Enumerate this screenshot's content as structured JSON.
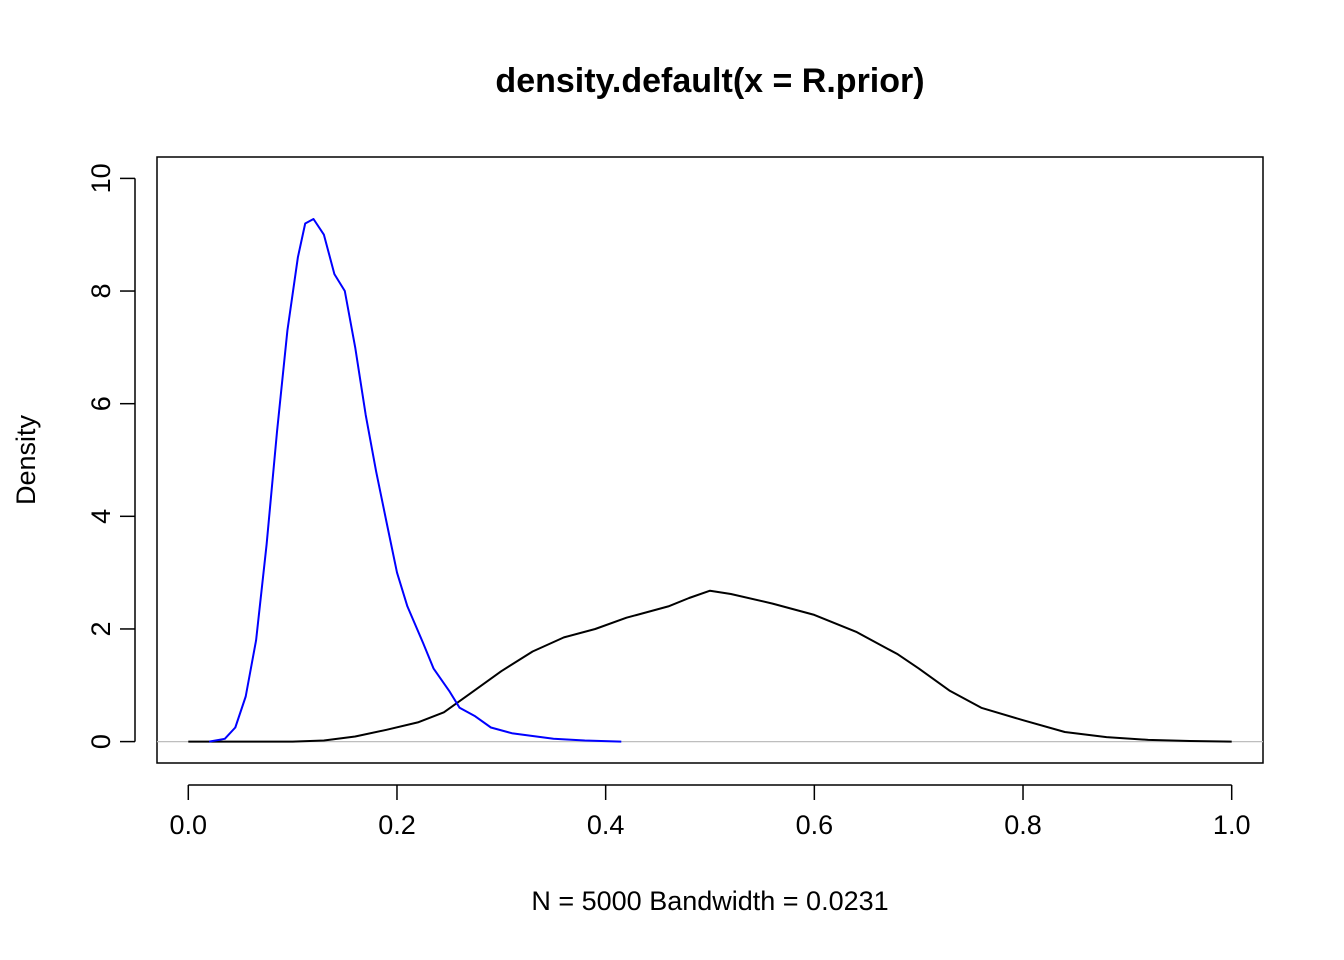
{
  "chart_data": {
    "type": "line",
    "title": "density.default(x = R.prior)",
    "xlabel": "N = 5000   Bandwidth = 0.0231",
    "ylabel": "Density",
    "xlim": [
      -0.03,
      1.03
    ],
    "ylim": [
      -0.38,
      10.38
    ],
    "x_ticks": [
      0.0,
      0.2,
      0.4,
      0.6,
      0.8,
      1.0
    ],
    "x_tick_labels": [
      "0.0",
      "0.2",
      "0.4",
      "0.6",
      "0.8",
      "1.0"
    ],
    "y_ticks": [
      0,
      2,
      4,
      6,
      8,
      10
    ],
    "y_tick_labels": [
      "0",
      "2",
      "4",
      "6",
      "8",
      "10"
    ],
    "baseline": {
      "y": 0,
      "color": "#bebebe"
    },
    "grid": false,
    "legend": "none",
    "series": [
      {
        "color": "#000000",
        "points": [
          [
            0.0,
            0.0
          ],
          [
            0.1,
            0.0
          ],
          [
            0.13,
            0.02
          ],
          [
            0.16,
            0.09
          ],
          [
            0.19,
            0.21
          ],
          [
            0.22,
            0.34
          ],
          [
            0.245,
            0.52
          ],
          [
            0.27,
            0.85
          ],
          [
            0.3,
            1.25
          ],
          [
            0.33,
            1.6
          ],
          [
            0.36,
            1.85
          ],
          [
            0.39,
            2.0
          ],
          [
            0.42,
            2.2
          ],
          [
            0.46,
            2.4
          ],
          [
            0.48,
            2.55
          ],
          [
            0.5,
            2.68
          ],
          [
            0.52,
            2.62
          ],
          [
            0.56,
            2.45
          ],
          [
            0.6,
            2.25
          ],
          [
            0.64,
            1.95
          ],
          [
            0.68,
            1.55
          ],
          [
            0.7,
            1.3
          ],
          [
            0.73,
            0.9
          ],
          [
            0.76,
            0.6
          ],
          [
            0.8,
            0.38
          ],
          [
            0.84,
            0.17
          ],
          [
            0.88,
            0.08
          ],
          [
            0.92,
            0.03
          ],
          [
            0.96,
            0.01
          ],
          [
            1.0,
            0.0
          ]
        ]
      },
      {
        "color": "#0000ff",
        "points": [
          [
            0.02,
            0.0
          ],
          [
            0.035,
            0.05
          ],
          [
            0.045,
            0.25
          ],
          [
            0.055,
            0.8
          ],
          [
            0.065,
            1.8
          ],
          [
            0.075,
            3.5
          ],
          [
            0.085,
            5.5
          ],
          [
            0.095,
            7.3
          ],
          [
            0.105,
            8.6
          ],
          [
            0.112,
            9.2
          ],
          [
            0.12,
            9.28
          ],
          [
            0.13,
            9.0
          ],
          [
            0.14,
            8.3
          ],
          [
            0.15,
            8.0
          ],
          [
            0.16,
            7.0
          ],
          [
            0.17,
            5.8
          ],
          [
            0.18,
            4.8
          ],
          [
            0.19,
            3.9
          ],
          [
            0.2,
            3.0
          ],
          [
            0.21,
            2.4
          ],
          [
            0.225,
            1.75
          ],
          [
            0.235,
            1.3
          ],
          [
            0.25,
            0.9
          ],
          [
            0.26,
            0.6
          ],
          [
            0.275,
            0.45
          ],
          [
            0.29,
            0.25
          ],
          [
            0.31,
            0.15
          ],
          [
            0.33,
            0.1
          ],
          [
            0.35,
            0.05
          ],
          [
            0.38,
            0.02
          ],
          [
            0.415,
            0.0
          ]
        ]
      }
    ]
  }
}
